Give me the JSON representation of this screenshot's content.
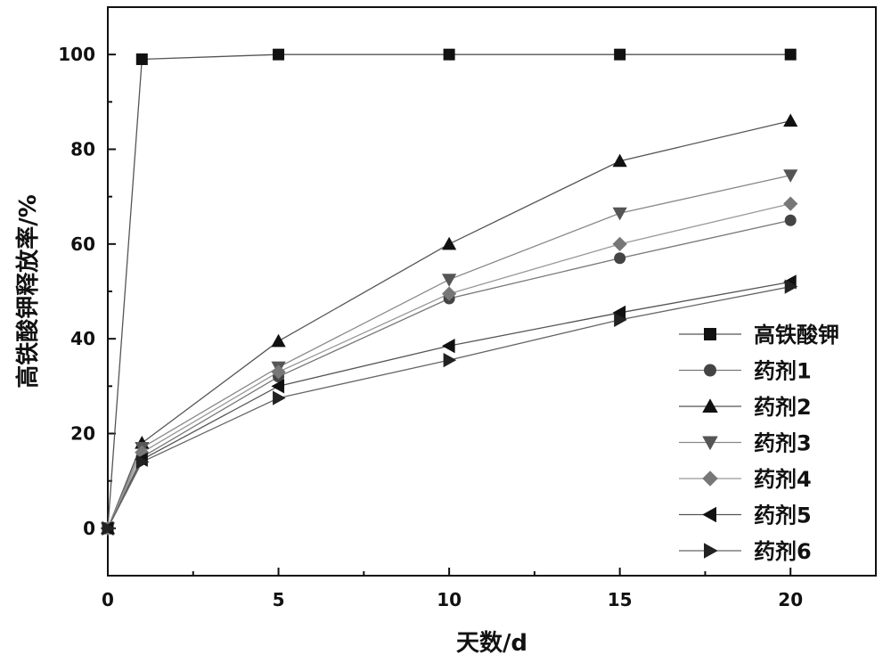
{
  "chart_data": {
    "type": "line",
    "xlabel": "天数/d",
    "ylabel": "高铁酸钾释放率/%",
    "xlim": [
      0,
      22.5
    ],
    "ylim": [
      -10,
      110
    ],
    "xticks": [
      0,
      5,
      10,
      15,
      20
    ],
    "yticks": [
      0,
      20,
      40,
      60,
      80,
      100
    ],
    "grid": false,
    "legend_position": "bottom-right",
    "series": [
      {
        "name": "高铁酸钾",
        "marker": "square",
        "color": "#111111",
        "line_color": "#555555",
        "x": [
          0,
          1,
          5,
          10,
          15,
          20
        ],
        "y": [
          0,
          99,
          100,
          100,
          100,
          100
        ]
      },
      {
        "name": "药剂1",
        "marker": "circle",
        "color": "#444444",
        "line_color": "#777777",
        "x": [
          0,
          1,
          5,
          10,
          15,
          20
        ],
        "y": [
          0,
          15,
          32,
          48.5,
          57,
          65
        ]
      },
      {
        "name": "药剂2",
        "marker": "triangle-up",
        "color": "#111111",
        "line_color": "#555555",
        "x": [
          0,
          1,
          5,
          10,
          15,
          20
        ],
        "y": [
          0,
          18,
          39.5,
          60,
          77.5,
          86
        ]
      },
      {
        "name": "药剂3",
        "marker": "triangle-down",
        "color": "#555555",
        "line_color": "#888888",
        "x": [
          0,
          1,
          5,
          10,
          15,
          20
        ],
        "y": [
          0,
          17,
          34,
          52.5,
          66.5,
          74.5
        ]
      },
      {
        "name": "药剂4",
        "marker": "diamond",
        "color": "#777777",
        "line_color": "#999999",
        "x": [
          0,
          1,
          5,
          10,
          15,
          20
        ],
        "y": [
          0,
          16,
          33,
          49.5,
          60,
          68.5
        ]
      },
      {
        "name": "药剂5",
        "marker": "triangle-left",
        "color": "#111111",
        "line_color": "#555555",
        "x": [
          0,
          1,
          5,
          10,
          15,
          20
        ],
        "y": [
          0,
          14.5,
          30,
          38.5,
          45.5,
          52
        ]
      },
      {
        "name": "药剂6",
        "marker": "triangle-right",
        "color": "#222222",
        "line_color": "#666666",
        "x": [
          0,
          1,
          5,
          10,
          15,
          20
        ],
        "y": [
          0,
          14,
          27.5,
          35.5,
          44,
          51
        ]
      }
    ]
  }
}
